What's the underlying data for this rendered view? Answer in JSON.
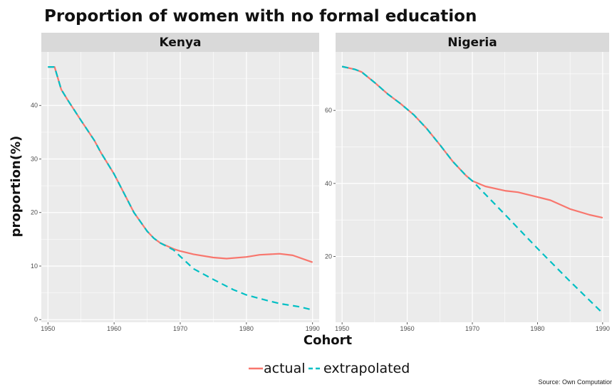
{
  "chart_data": {
    "type": "line",
    "title": "Proportion of women with no formal education",
    "xlabel": "Cohort",
    "ylabel": "proportion(%)",
    "caption": "Source: Own Computatior",
    "legend": {
      "placement": "bottom",
      "entries": [
        {
          "label": "actual",
          "color": "#F8766D",
          "style": "solid"
        },
        {
          "label": "extrapolated",
          "color": "#00BFC4",
          "style": "dashed"
        }
      ]
    },
    "colors": {
      "actual": "#F8766D",
      "extrapolated": "#00BFC4",
      "panel": "#EBEBEB",
      "strip": "#D9D9D9",
      "grid": "#ffffff"
    },
    "grid": true,
    "panels": [
      {
        "label": "Kenya",
        "xlim": [
          1949,
          1991
        ],
        "ylim": [
          -0.5,
          50
        ],
        "xticks": [
          1950,
          1960,
          1970,
          1980,
          1990
        ],
        "yticks": [
          0,
          10,
          20,
          30,
          40
        ],
        "series": [
          {
            "name": "actual",
            "x": [
              1950,
              1951,
              1952,
              1953,
              1955,
              1957,
              1958,
              1960,
              1961,
              1963,
              1965,
              1966,
              1967,
              1969,
              1970,
              1972,
              1975,
              1977,
              1980,
              1982,
              1985,
              1987,
              1990
            ],
            "y": [
              47.2,
              47.2,
              43.0,
              41.0,
              37.2,
              33.5,
              31.2,
              27.2,
              24.8,
              20.0,
              16.5,
              15.2,
              14.3,
              13.2,
              12.8,
              12.2,
              11.6,
              11.4,
              11.7,
              12.1,
              12.3,
              12.0,
              10.7
            ]
          },
          {
            "name": "extrapolated",
            "x": [
              1950,
              1951,
              1952,
              1953,
              1955,
              1957,
              1958,
              1960,
              1961,
              1963,
              1965,
              1966,
              1967,
              1969,
              1970,
              1972,
              1975,
              1978,
              1980,
              1983,
              1985,
              1988,
              1990
            ],
            "y": [
              47.2,
              47.2,
              43.0,
              41.0,
              37.2,
              33.5,
              31.2,
              27.2,
              24.8,
              20.0,
              16.5,
              15.2,
              14.3,
              13.0,
              11.8,
              9.5,
              7.5,
              5.6,
              4.6,
              3.6,
              3.0,
              2.4,
              1.8
            ]
          }
        ]
      },
      {
        "label": "Nigeria",
        "xlim": [
          1949,
          1991
        ],
        "ylim": [
          2,
          76
        ],
        "xticks": [
          1950,
          1960,
          1970,
          1980,
          1990
        ],
        "yticks": [
          20,
          40,
          60
        ],
        "series": [
          {
            "name": "actual",
            "x": [
              1950,
              1952,
              1953,
              1955,
              1957,
              1959,
              1961,
              1963,
              1965,
              1967,
              1969,
              1970,
              1972,
              1975,
              1977,
              1980,
              1982,
              1985,
              1988,
              1990
            ],
            "y": [
              72.0,
              71.2,
              70.5,
              67.6,
              64.5,
              61.8,
              58.8,
              55.0,
              50.6,
              46.0,
              42.2,
              40.7,
              39.2,
              38.0,
              37.6,
              36.3,
              35.4,
              33.0,
              31.4,
              30.6
            ]
          },
          {
            "name": "extrapolated",
            "x": [
              1950,
              1952,
              1953,
              1955,
              1957,
              1959,
              1961,
              1963,
              1965,
              1967,
              1969,
              1970,
              1975,
              1980,
              1985,
              1990
            ],
            "y": [
              72.0,
              71.2,
              70.5,
              67.6,
              64.5,
              61.8,
              58.8,
              55.0,
              50.6,
              46.0,
              42.2,
              40.7,
              31.5,
              22.2,
              13.2,
              4.5
            ]
          }
        ]
      }
    ]
  }
}
